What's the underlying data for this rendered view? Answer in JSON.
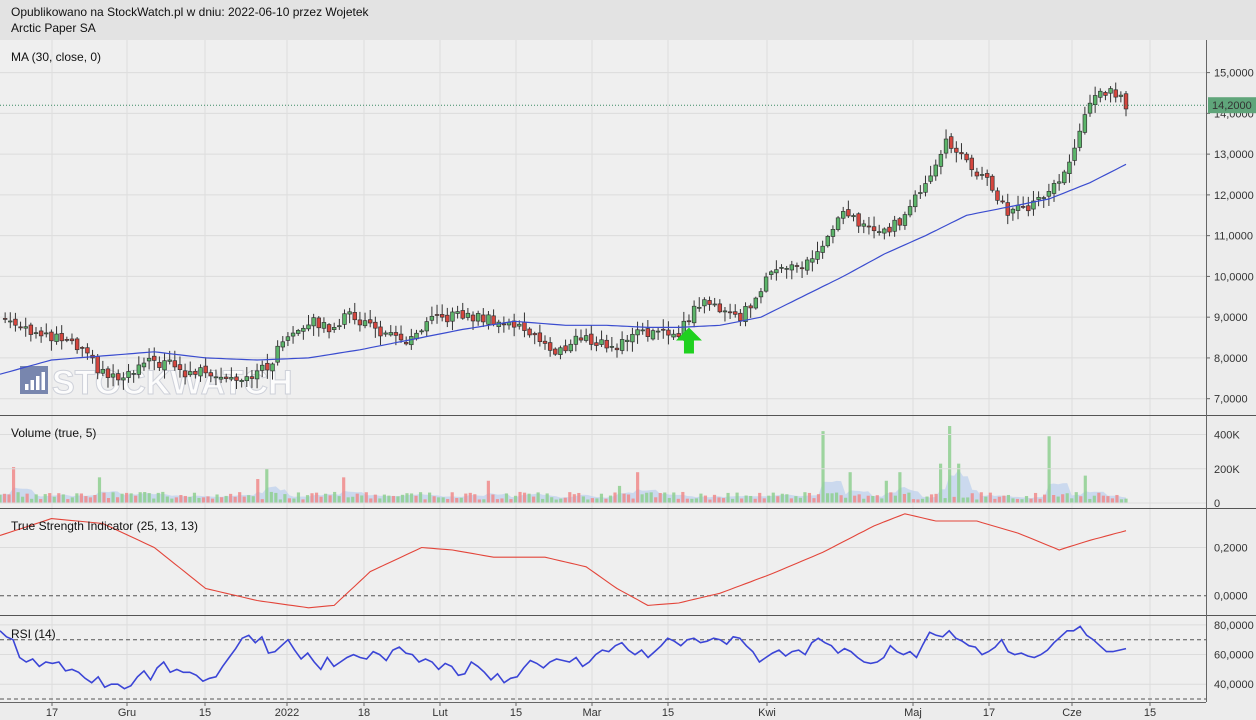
{
  "header": {
    "line1": "Opublikowano na StockWatch.pl w dniu: 2022-06-10 przez Wojetek",
    "line2": "Arctic Paper SA"
  },
  "watermark": "STOCKWATCH",
  "colors": {
    "up": "#5cb56a",
    "down": "#d6463e",
    "ma": "#3a4ccf",
    "tsi": "#e3453a",
    "rsi": "#3b45d6",
    "vol_up": "#8ecf8f",
    "vol_down": "#f08a8a",
    "vol_ma": "#bcd0ee",
    "last_price_bg": "#5fa57a",
    "arrow": "#1fd11f"
  },
  "chart_data": [
    {
      "type": "candlestick",
      "panel": "price",
      "title": "MA (30, close, 0)",
      "ylim": [
        6600,
        15800
      ],
      "yticks": [
        "15,0000",
        "14,0000",
        "13,0000",
        "12,0000",
        "11,0000",
        "10,0000",
        "9,0000",
        "8,0000",
        "7,0000"
      ],
      "last_price_label": "14,2000",
      "last_price": 14200,
      "xticks": [
        "17",
        "Gru",
        "15",
        "2022",
        "18",
        "Lut",
        "15",
        "Mar",
        "15",
        "Kwi",
        "Maj",
        "17",
        "Cze",
        "15"
      ],
      "candle_count": 140,
      "close_anchors": [
        [
          0,
          9000
        ],
        [
          4,
          8850
        ],
        [
          8,
          8500
        ],
        [
          12,
          8450
        ],
        [
          16,
          8150
        ],
        [
          20,
          7600
        ],
        [
          24,
          7450
        ],
        [
          28,
          7850
        ],
        [
          32,
          7900
        ],
        [
          36,
          7600
        ],
        [
          40,
          7700
        ],
        [
          44,
          7550
        ],
        [
          48,
          7550
        ],
        [
          52,
          7750
        ],
        [
          56,
          8600
        ],
        [
          60,
          8900
        ],
        [
          64,
          8750
        ],
        [
          68,
          9050
        ],
        [
          72,
          8800
        ],
        [
          76,
          8500
        ],
        [
          80,
          8400
        ],
        [
          84,
          8900
        ],
        [
          88,
          9050
        ],
        [
          92,
          9000
        ],
        [
          96,
          8950
        ],
        [
          100,
          8800
        ],
        [
          104,
          8600
        ],
        [
          108,
          8050
        ],
        [
          112,
          8500
        ],
        [
          116,
          8400
        ],
        [
          120,
          8250
        ],
        [
          124,
          8750
        ],
        [
          128,
          8550
        ],
        [
          132,
          8650
        ],
        [
          136,
          9350
        ],
        [
          140,
          9250
        ],
        [
          144,
          9000
        ],
        [
          148,
          9700
        ],
        [
          152,
          10350
        ],
        [
          156,
          10200
        ],
        [
          160,
          10750
        ],
        [
          164,
          11500
        ],
        [
          168,
          11250
        ],
        [
          172,
          11050
        ],
        [
          176,
          11500
        ],
        [
          180,
          12350
        ],
        [
          184,
          13300
        ],
        [
          188,
          12800
        ],
        [
          192,
          12300
        ],
        [
          196,
          11600
        ],
        [
          200,
          11700
        ],
        [
          204,
          12100
        ],
        [
          208,
          12700
        ],
        [
          212,
          14300
        ],
        [
          216,
          14600
        ],
        [
          219,
          14200
        ]
      ],
      "ma_anchors": [
        [
          0,
          7600
        ],
        [
          10,
          7950
        ],
        [
          20,
          8050
        ],
        [
          30,
          8150
        ],
        [
          40,
          8000
        ],
        [
          50,
          7950
        ],
        [
          60,
          8000
        ],
        [
          70,
          8200
        ],
        [
          80,
          8450
        ],
        [
          90,
          8700
        ],
        [
          100,
          8900
        ],
        [
          110,
          8800
        ],
        [
          118,
          8800
        ],
        [
          126,
          8750
        ],
        [
          132,
          8750
        ],
        [
          140,
          8800
        ],
        [
          148,
          9000
        ],
        [
          156,
          9500
        ],
        [
          164,
          10000
        ],
        [
          172,
          10550
        ],
        [
          180,
          11000
        ],
        [
          188,
          11500
        ],
        [
          196,
          11700
        ],
        [
          204,
          11900
        ],
        [
          212,
          12300
        ],
        [
          219,
          12750
        ]
      ],
      "arrow_at": 134
    },
    {
      "type": "bar",
      "panel": "volume",
      "title": "Volume (true, 5)",
      "ylim": [
        0,
        450000
      ],
      "yticks": [
        "400K",
        "200K",
        "0"
      ],
      "spikes": [
        [
          3,
          210000,
          "down"
        ],
        [
          14,
          50000,
          "up"
        ],
        [
          22,
          150000,
          "up"
        ],
        [
          43,
          60000,
          "up"
        ],
        [
          57,
          140000,
          "down"
        ],
        [
          59,
          200000,
          "up"
        ],
        [
          76,
          150000,
          "down"
        ],
        [
          108,
          130000,
          "down"
        ],
        [
          137,
          100000,
          "up"
        ],
        [
          141,
          180000,
          "down"
        ],
        [
          182,
          420000,
          "up"
        ],
        [
          188,
          180000,
          "up"
        ],
        [
          196,
          130000,
          "up"
        ],
        [
          199,
          180000,
          "up"
        ],
        [
          208,
          230000,
          "up"
        ],
        [
          210,
          450000,
          "up"
        ],
        [
          212,
          230000,
          "up"
        ],
        [
          232,
          390000,
          "up"
        ],
        [
          240,
          160000,
          "up"
        ]
      ]
    },
    {
      "type": "line",
      "panel": "tsi",
      "title": "True Strength Indicator (25, 13, 13)",
      "ylim": [
        -0.08,
        0.36
      ],
      "yticks": [
        "0,2000",
        "0,0000"
      ],
      "values_anchors": [
        [
          0,
          0.25
        ],
        [
          10,
          0.32
        ],
        [
          20,
          0.3
        ],
        [
          30,
          0.2
        ],
        [
          40,
          0.03
        ],
        [
          50,
          -0.02
        ],
        [
          60,
          -0.05
        ],
        [
          65,
          -0.04
        ],
        [
          72,
          0.1
        ],
        [
          82,
          0.2
        ],
        [
          88,
          0.19
        ],
        [
          96,
          0.16
        ],
        [
          106,
          0.16
        ],
        [
          114,
          0.12
        ],
        [
          120,
          0.03
        ],
        [
          126,
          -0.04
        ],
        [
          132,
          -0.03
        ],
        [
          140,
          0.01
        ],
        [
          150,
          0.09
        ],
        [
          160,
          0.18
        ],
        [
          170,
          0.29
        ],
        [
          176,
          0.34
        ],
        [
          182,
          0.31
        ],
        [
          190,
          0.31
        ],
        [
          198,
          0.26
        ],
        [
          206,
          0.19
        ],
        [
          212,
          0.23
        ],
        [
          219,
          0.27
        ]
      ]
    },
    {
      "type": "line",
      "panel": "rsi",
      "title": "RSI (14)",
      "ylim": [
        28,
        86
      ],
      "yticks": [
        "80,0000",
        "60,0000",
        "40,0000"
      ],
      "levels": [
        70,
        30
      ],
      "values": [
        76,
        72,
        70,
        58,
        55,
        57,
        52,
        55,
        54,
        55,
        49,
        50,
        48,
        44,
        41,
        45,
        38,
        40,
        40,
        37,
        39,
        45,
        49,
        43,
        51,
        55,
        48,
        50,
        48,
        48,
        46,
        42,
        44,
        45,
        52,
        58,
        64,
        71,
        73,
        68,
        72,
        61,
        62,
        66,
        70,
        63,
        57,
        61,
        55,
        50,
        58,
        52,
        55,
        58,
        60,
        58,
        57,
        62,
        60,
        56,
        63,
        65,
        61,
        60,
        55,
        57,
        55,
        50,
        54,
        52,
        46,
        47,
        55,
        52,
        48,
        43,
        47,
        41,
        44,
        45,
        51,
        56,
        54,
        51,
        55,
        57,
        56,
        55,
        58,
        52,
        55,
        60,
        63,
        62,
        66,
        68,
        63,
        60,
        63,
        58,
        62,
        66,
        71,
        69,
        66,
        70,
        71,
        68,
        69,
        71,
        70,
        67,
        72,
        71,
        66,
        62,
        55,
        58,
        61,
        63,
        59,
        62,
        63,
        60,
        68,
        71,
        68,
        66,
        61,
        64,
        62,
        58,
        55,
        54,
        55,
        58,
        66,
        62,
        60,
        62,
        58,
        67,
        75,
        73,
        72,
        76,
        71,
        69,
        66,
        65,
        60,
        62,
        65,
        70,
        62,
        60,
        61,
        59,
        58,
        60,
        63,
        68,
        72,
        76,
        76,
        79,
        73,
        70,
        66,
        62,
        62,
        63,
        64
      ]
    }
  ]
}
